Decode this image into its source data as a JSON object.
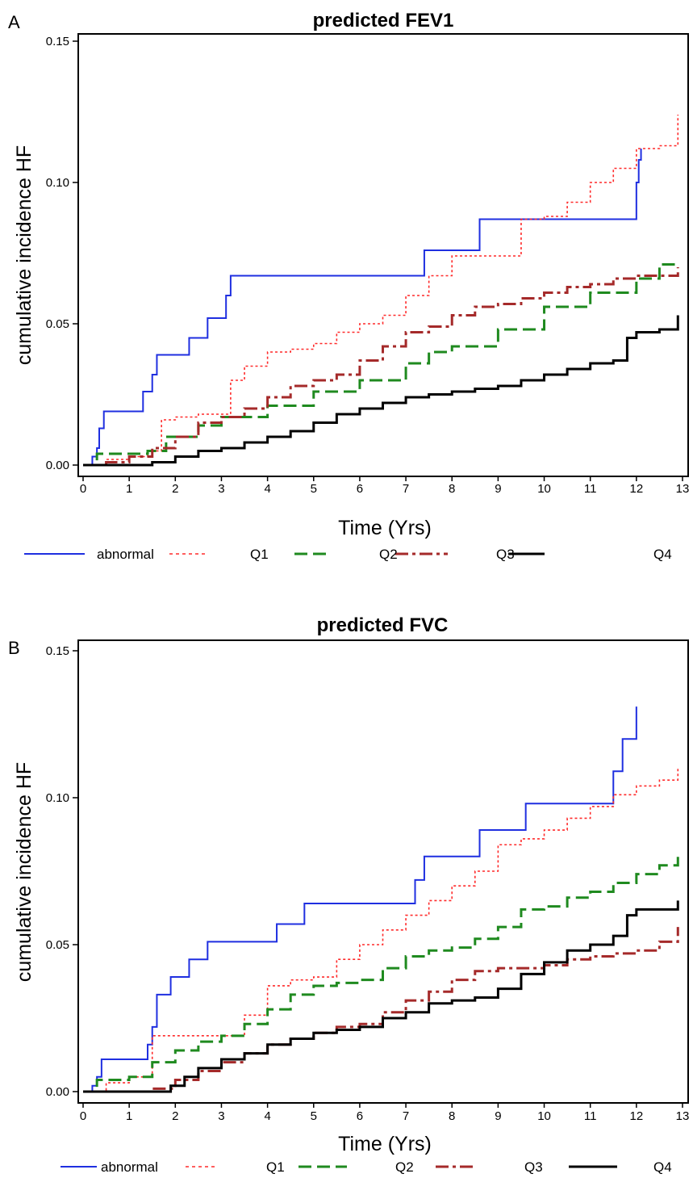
{
  "colors": {
    "abnormal": "#1f2fe0",
    "Q1": "#ff2a2a",
    "Q2": "#1f8a1f",
    "Q3": "#a52a2a",
    "Q4": "#000000"
  },
  "chart_data": [
    {
      "type": "line",
      "panel_label": "A",
      "title": "predicted FEV1",
      "xlabel": "Time (Yrs)",
      "ylabel": "cumulative incidence HF",
      "xlim": [
        0,
        13
      ],
      "ylim": [
        0,
        0.15
      ],
      "xticks": [
        "0",
        "1",
        "2",
        "3",
        "4",
        "5",
        "6",
        "7",
        "8",
        "9",
        "10",
        "11",
        "12",
        "13"
      ],
      "yticks": [
        "0.00",
        "0.05",
        "0.10",
        "0.15"
      ],
      "legend_position": "bottom",
      "series": [
        {
          "name": "abnormal",
          "step": true,
          "x": [
            0,
            0.2,
            0.3,
            0.35,
            0.45,
            1.3,
            1.4,
            1.5,
            1.6,
            2.3,
            2.4,
            2.7,
            3.1,
            3.2,
            7.4,
            8.6,
            12.0,
            12.05,
            12.1
          ],
          "y": [
            0,
            0.003,
            0.006,
            0.013,
            0.019,
            0.026,
            0.026,
            0.032,
            0.039,
            0.045,
            0.045,
            0.052,
            0.06,
            0.067,
            0.076,
            0.087,
            0.1,
            0.108,
            0.112
          ]
        },
        {
          "name": "",
          "step": true,
          "x": [
            0,
            0.5,
            1.0,
            1.4,
            1.7,
            2.0,
            2.5,
            3.0,
            3.2,
            3.5,
            4.0,
            4.5,
            5.0,
            5.5,
            6.0,
            6.5,
            7.0,
            7.5,
            8.0,
            9.0,
            9.5,
            10.0,
            10.5,
            11.0,
            11.5,
            12.0,
            12.5,
            12.9
          ],
          "y": [
            0,
            0.002,
            0.003,
            0.005,
            0.016,
            0.017,
            0.018,
            0.018,
            0.03,
            0.035,
            0.04,
            0.041,
            0.043,
            0.047,
            0.05,
            0.053,
            0.06,
            0.067,
            0.074,
            0.074,
            0.087,
            0.088,
            0.093,
            0.1,
            0.105,
            0.112,
            0.113,
            0.124
          ]
        },
        {
          "name": "Q1",
          "step": true,
          "x": [
            0,
            0.3,
            1.4,
            1.8,
            2.5,
            3.0,
            4.0,
            5.0,
            6.0,
            7.0,
            7.5,
            8.0,
            9.0,
            10.0,
            11.0,
            12.0,
            12.5,
            12.9
          ],
          "y": [
            0,
            0.004,
            0.005,
            0.01,
            0.014,
            0.017,
            0.021,
            0.026,
            0.03,
            0.036,
            0.04,
            0.042,
            0.048,
            0.056,
            0.061,
            0.066,
            0.071,
            0.071
          ]
        },
        {
          "name": "Q2",
          "step": true,
          "x": [
            0,
            0.5,
            1.0,
            1.5,
            2.0,
            2.5,
            3.0,
            3.5,
            4.0,
            4.5,
            5.0,
            5.5,
            6.0,
            6.5,
            7.0,
            7.5,
            8.0,
            8.5,
            9.0,
            9.5,
            10.0,
            10.5,
            11.0,
            11.5,
            12.0,
            12.9
          ],
          "y": [
            0,
            0.001,
            0.003,
            0.006,
            0.01,
            0.015,
            0.017,
            0.02,
            0.024,
            0.028,
            0.03,
            0.032,
            0.037,
            0.042,
            0.047,
            0.049,
            0.053,
            0.056,
            0.057,
            0.059,
            0.061,
            0.063,
            0.064,
            0.066,
            0.067,
            0.07
          ]
        },
        {
          "name": "Q3",
          "step": true,
          "x": [
            0,
            1.5,
            2.0,
            2.5,
            3.0,
            3.5,
            4.0,
            4.5,
            5.0,
            5.5,
            6.0,
            6.5,
            7.0,
            7.5,
            8.0,
            8.5,
            9.0,
            9.5,
            10.0,
            10.5,
            11.0,
            11.5,
            11.8,
            12.0,
            12.5,
            12.9
          ],
          "y": [
            0,
            0.001,
            0.003,
            0.005,
            0.006,
            0.008,
            0.01,
            0.012,
            0.015,
            0.018,
            0.02,
            0.022,
            0.024,
            0.025,
            0.026,
            0.027,
            0.028,
            0.03,
            0.032,
            0.034,
            0.036,
            0.037,
            0.045,
            0.047,
            0.048,
            0.053
          ]
        },
        {
          "name": "Q4",
          "step": true,
          "x": [
            0
          ],
          "y": [
            0
          ]
        }
      ]
    },
    {
      "type": "line",
      "panel_label": "B",
      "title": "predicted FVC",
      "xlabel": "Time (Yrs)",
      "ylabel": "cumulative incidence HF",
      "xlim": [
        0,
        13
      ],
      "ylim": [
        0,
        0.15
      ],
      "xticks": [
        "0",
        "1",
        "2",
        "3",
        "4",
        "5",
        "6",
        "7",
        "8",
        "9",
        "10",
        "11",
        "12",
        "13"
      ],
      "yticks": [
        "0.00",
        "0.05",
        "0.10",
        "0.15"
      ],
      "legend_position": "bottom",
      "series": [
        {
          "name": "abnormal",
          "step": true,
          "x": [
            0,
            0.2,
            0.3,
            0.4,
            1.3,
            1.4,
            1.5,
            1.6,
            1.9,
            2.3,
            2.7,
            4.2,
            4.8,
            7.2,
            7.3,
            7.4,
            8.6,
            9.6,
            11.5,
            11.7,
            12.0
          ],
          "y": [
            0,
            0.002,
            0.005,
            0.011,
            0.011,
            0.016,
            0.022,
            0.033,
            0.039,
            0.045,
            0.051,
            0.057,
            0.064,
            0.072,
            0.072,
            0.08,
            0.089,
            0.098,
            0.109,
            0.12,
            0.131
          ]
        },
        {
          "name": "",
          "step": true,
          "x": [
            0,
            0.5,
            1.0,
            1.5,
            2.0,
            2.5,
            3.0,
            3.5,
            4.0,
            4.5,
            5.0,
            5.5,
            6.0,
            6.5,
            7.0,
            7.5,
            8.0,
            8.5,
            9.0,
            9.5,
            10.0,
            10.5,
            11.0,
            11.5,
            12.0,
            12.5,
            12.9
          ],
          "y": [
            0,
            0.003,
            0.005,
            0.019,
            0.019,
            0.019,
            0.019,
            0.026,
            0.036,
            0.038,
            0.039,
            0.045,
            0.05,
            0.055,
            0.06,
            0.065,
            0.07,
            0.075,
            0.084,
            0.086,
            0.089,
            0.093,
            0.097,
            0.101,
            0.104,
            0.106,
            0.11
          ]
        },
        {
          "name": "Q1",
          "step": true,
          "x": [
            0,
            0.3,
            1.0,
            1.5,
            2.0,
            2.5,
            3.0,
            3.5,
            4.0,
            4.5,
            5.0,
            5.5,
            6.0,
            6.5,
            7.0,
            7.5,
            8.0,
            8.5,
            9.0,
            9.5,
            10.0,
            10.5,
            11.0,
            11.5,
            12.0,
            12.5,
            12.9
          ],
          "y": [
            0,
            0.004,
            0.005,
            0.01,
            0.014,
            0.017,
            0.019,
            0.023,
            0.028,
            0.033,
            0.036,
            0.037,
            0.038,
            0.042,
            0.046,
            0.048,
            0.049,
            0.052,
            0.056,
            0.062,
            0.063,
            0.066,
            0.068,
            0.071,
            0.074,
            0.077,
            0.08
          ]
        },
        {
          "name": "Q2",
          "step": true,
          "x": [
            0,
            1.5,
            2.0,
            2.5,
            3.0,
            3.5,
            4.0,
            4.5,
            5.0,
            5.5,
            6.0,
            6.5,
            7.0,
            7.5,
            8.0,
            8.5,
            9.0,
            9.5,
            10.0,
            10.5,
            11.0,
            11.5,
            12.0,
            12.5,
            12.9
          ],
          "y": [
            0,
            0.001,
            0.004,
            0.007,
            0.01,
            0.013,
            0.016,
            0.018,
            0.02,
            0.022,
            0.023,
            0.027,
            0.031,
            0.034,
            0.038,
            0.041,
            0.042,
            0.042,
            0.043,
            0.045,
            0.046,
            0.047,
            0.048,
            0.051,
            0.056
          ]
        },
        {
          "name": "Q3",
          "step": true,
          "x": [
            0,
            1.9,
            2.2,
            2.5,
            3.0,
            3.5,
            4.0,
            4.5,
            5.0,
            5.5,
            6.0,
            6.5,
            7.0,
            7.5,
            8.0,
            8.5,
            9.0,
            9.5,
            10.0,
            10.5,
            11.0,
            11.5,
            11.8,
            12.0,
            12.5,
            12.9
          ],
          "y": [
            0,
            0.002,
            0.005,
            0.008,
            0.011,
            0.013,
            0.016,
            0.018,
            0.02,
            0.021,
            0.022,
            0.025,
            0.027,
            0.03,
            0.031,
            0.032,
            0.035,
            0.04,
            0.044,
            0.048,
            0.05,
            0.053,
            0.06,
            0.062,
            0.062,
            0.065
          ]
        },
        {
          "name": "Q4",
          "step": true,
          "x": [
            0
          ],
          "y": [
            0
          ]
        }
      ]
    }
  ]
}
